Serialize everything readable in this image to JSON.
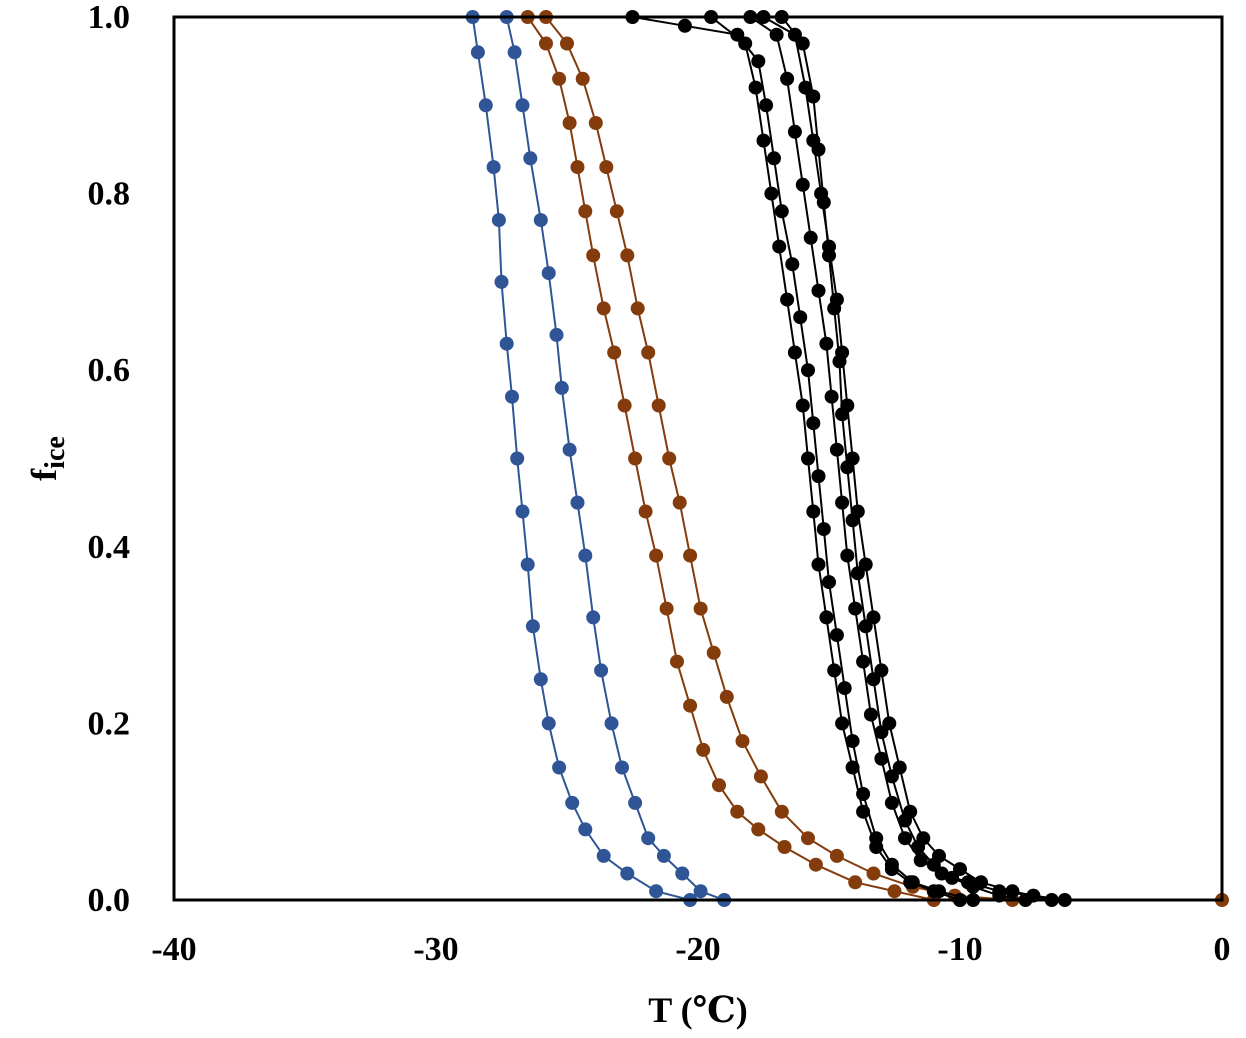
{
  "chart_data": {
    "type": "scatter",
    "title": "",
    "xlabel": "T (℃)",
    "ylabel": {
      "main": "f",
      "subscript": "ice"
    },
    "xlim": [
      -40,
      0
    ],
    "ylim": [
      0,
      1
    ],
    "xticks": [
      -40,
      -30,
      -20,
      -10,
      0
    ],
    "yticks": [
      0.0,
      0.2,
      0.4,
      0.6,
      0.8,
      1.0
    ],
    "xtick_labels": [
      "-40",
      "-30",
      "-20",
      "-10",
      "0"
    ],
    "ytick_labels": [
      "0.0",
      "0.2",
      "0.4",
      "0.6",
      "0.8",
      "1.0"
    ],
    "grid": false,
    "legend": "none",
    "series": [
      {
        "color": "#2F5597",
        "points": [
          [
            -28.6,
            1.0
          ],
          [
            -28.4,
            0.96
          ],
          [
            -28.1,
            0.9
          ],
          [
            -27.8,
            0.83
          ],
          [
            -27.6,
            0.77
          ],
          [
            -27.5,
            0.7
          ],
          [
            -27.3,
            0.63
          ],
          [
            -27.1,
            0.57
          ],
          [
            -26.9,
            0.5
          ],
          [
            -26.7,
            0.44
          ],
          [
            -26.5,
            0.38
          ],
          [
            -26.3,
            0.31
          ],
          [
            -26.0,
            0.25
          ],
          [
            -25.7,
            0.2
          ],
          [
            -25.3,
            0.15
          ],
          [
            -24.8,
            0.11
          ],
          [
            -24.3,
            0.08
          ],
          [
            -23.6,
            0.05
          ],
          [
            -22.7,
            0.03
          ],
          [
            -21.6,
            0.01
          ],
          [
            -20.3,
            0.0
          ]
        ]
      },
      {
        "color": "#2F5597",
        "points": [
          [
            -27.3,
            1.0
          ],
          [
            -27.0,
            0.96
          ],
          [
            -26.7,
            0.9
          ],
          [
            -26.4,
            0.84
          ],
          [
            -26.0,
            0.77
          ],
          [
            -25.7,
            0.71
          ],
          [
            -25.4,
            0.64
          ],
          [
            -25.2,
            0.58
          ],
          [
            -24.9,
            0.51
          ],
          [
            -24.6,
            0.45
          ],
          [
            -24.3,
            0.39
          ],
          [
            -24.0,
            0.32
          ],
          [
            -23.7,
            0.26
          ],
          [
            -23.3,
            0.2
          ],
          [
            -22.9,
            0.15
          ],
          [
            -22.4,
            0.11
          ],
          [
            -21.9,
            0.07
          ],
          [
            -21.3,
            0.05
          ],
          [
            -20.6,
            0.03
          ],
          [
            -19.9,
            0.01
          ],
          [
            -19.0,
            0.0
          ],
          [
            -10.0,
            0.0
          ]
        ]
      },
      {
        "color": "#843C0C",
        "points": [
          [
            -26.5,
            1.0
          ],
          [
            -25.8,
            0.97
          ],
          [
            -25.3,
            0.93
          ],
          [
            -24.9,
            0.88
          ],
          [
            -24.6,
            0.83
          ],
          [
            -24.3,
            0.78
          ],
          [
            -24.0,
            0.73
          ],
          [
            -23.6,
            0.67
          ],
          [
            -23.2,
            0.62
          ],
          [
            -22.8,
            0.56
          ],
          [
            -22.4,
            0.5
          ],
          [
            -22.0,
            0.44
          ],
          [
            -21.6,
            0.39
          ],
          [
            -21.2,
            0.33
          ],
          [
            -20.8,
            0.27
          ],
          [
            -20.3,
            0.22
          ],
          [
            -19.8,
            0.17
          ],
          [
            -19.2,
            0.13
          ],
          [
            -18.5,
            0.1
          ],
          [
            -17.7,
            0.08
          ],
          [
            -16.7,
            0.06
          ],
          [
            -15.5,
            0.04
          ],
          [
            -14.0,
            0.02
          ],
          [
            -12.5,
            0.01
          ],
          [
            -11.0,
            0.0
          ]
        ]
      },
      {
        "color": "#843C0C",
        "points": [
          [
            -25.8,
            1.0
          ],
          [
            -25.0,
            0.97
          ],
          [
            -24.4,
            0.93
          ],
          [
            -23.9,
            0.88
          ],
          [
            -23.5,
            0.83
          ],
          [
            -23.1,
            0.78
          ],
          [
            -22.7,
            0.73
          ],
          [
            -22.3,
            0.67
          ],
          [
            -21.9,
            0.62
          ],
          [
            -21.5,
            0.56
          ],
          [
            -21.1,
            0.5
          ],
          [
            -20.7,
            0.45
          ],
          [
            -20.3,
            0.39
          ],
          [
            -19.9,
            0.33
          ],
          [
            -19.4,
            0.28
          ],
          [
            -18.9,
            0.23
          ],
          [
            -18.3,
            0.18
          ],
          [
            -17.6,
            0.14
          ],
          [
            -16.8,
            0.1
          ],
          [
            -15.8,
            0.07
          ],
          [
            -14.7,
            0.05
          ],
          [
            -13.3,
            0.03
          ],
          [
            -11.8,
            0.015
          ],
          [
            -10.2,
            0.005
          ],
          [
            -8.0,
            0.0
          ],
          [
            0.0,
            0.0
          ]
        ]
      },
      {
        "color": "#000000",
        "points": [
          [
            -22.5,
            1.0
          ],
          [
            -20.5,
            0.99
          ],
          [
            -18.5,
            0.98
          ],
          [
            -17.7,
            0.95
          ],
          [
            -17.4,
            0.9
          ],
          [
            -17.1,
            0.84
          ],
          [
            -16.8,
            0.78
          ],
          [
            -16.4,
            0.72
          ],
          [
            -16.1,
            0.66
          ],
          [
            -15.8,
            0.6
          ],
          [
            -15.6,
            0.54
          ],
          [
            -15.4,
            0.48
          ],
          [
            -15.2,
            0.42
          ],
          [
            -15.0,
            0.36
          ],
          [
            -14.7,
            0.3
          ],
          [
            -14.4,
            0.24
          ],
          [
            -14.1,
            0.18
          ],
          [
            -13.7,
            0.12
          ],
          [
            -13.2,
            0.07
          ],
          [
            -12.6,
            0.04
          ],
          [
            -11.8,
            0.02
          ],
          [
            -10.8,
            0.01
          ],
          [
            -9.5,
            0.0
          ]
        ]
      },
      {
        "color": "#000000",
        "points": [
          [
            -18.0,
            1.0
          ],
          [
            -17.0,
            0.98
          ],
          [
            -16.6,
            0.93
          ],
          [
            -16.3,
            0.87
          ],
          [
            -16.0,
            0.81
          ],
          [
            -15.7,
            0.75
          ],
          [
            -15.4,
            0.69
          ],
          [
            -15.1,
            0.63
          ],
          [
            -14.9,
            0.57
          ],
          [
            -14.7,
            0.51
          ],
          [
            -14.5,
            0.45
          ],
          [
            -14.3,
            0.39
          ],
          [
            -14.0,
            0.33
          ],
          [
            -13.7,
            0.27
          ],
          [
            -13.4,
            0.21
          ],
          [
            -13.0,
            0.16
          ],
          [
            -12.6,
            0.11
          ],
          [
            -12.1,
            0.07
          ],
          [
            -11.5,
            0.045
          ],
          [
            -10.7,
            0.03
          ],
          [
            -9.7,
            0.02
          ],
          [
            -8.5,
            0.01
          ],
          [
            -7.2,
            0.005
          ],
          [
            -6.0,
            0.0
          ]
        ]
      },
      {
        "color": "#000000",
        "points": [
          [
            -17.5,
            1.0
          ],
          [
            -16.3,
            0.98
          ],
          [
            -15.9,
            0.92
          ],
          [
            -15.6,
            0.86
          ],
          [
            -15.3,
            0.8
          ],
          [
            -15.0,
            0.74
          ],
          [
            -14.7,
            0.68
          ],
          [
            -14.5,
            0.62
          ],
          [
            -14.3,
            0.56
          ],
          [
            -14.1,
            0.5
          ],
          [
            -13.9,
            0.44
          ],
          [
            -13.6,
            0.38
          ],
          [
            -13.3,
            0.32
          ],
          [
            -13.0,
            0.26
          ],
          [
            -12.7,
            0.2
          ],
          [
            -12.3,
            0.15
          ],
          [
            -11.9,
            0.1
          ],
          [
            -11.4,
            0.07
          ],
          [
            -10.8,
            0.05
          ],
          [
            -10.0,
            0.035
          ],
          [
            -9.2,
            0.02
          ],
          [
            -8.0,
            0.01
          ],
          [
            -6.5,
            0.0
          ]
        ]
      },
      {
        "color": "#000000",
        "points": [
          [
            -19.5,
            1.0
          ],
          [
            -18.2,
            0.97
          ],
          [
            -17.8,
            0.92
          ],
          [
            -17.5,
            0.86
          ],
          [
            -17.2,
            0.8
          ],
          [
            -16.9,
            0.74
          ],
          [
            -16.6,
            0.68
          ],
          [
            -16.3,
            0.62
          ],
          [
            -16.0,
            0.56
          ],
          [
            -15.8,
            0.5
          ],
          [
            -15.6,
            0.44
          ],
          [
            -15.4,
            0.38
          ],
          [
            -15.1,
            0.32
          ],
          [
            -14.8,
            0.26
          ],
          [
            -14.5,
            0.2
          ],
          [
            -14.1,
            0.15
          ],
          [
            -13.7,
            0.1
          ],
          [
            -13.2,
            0.06
          ],
          [
            -12.6,
            0.035
          ],
          [
            -11.9,
            0.02
          ],
          [
            -11.0,
            0.01
          ],
          [
            -10.0,
            0.0
          ]
        ]
      },
      {
        "color": "#000000",
        "points": [
          [
            -16.8,
            1.0
          ],
          [
            -16.0,
            0.97
          ],
          [
            -15.6,
            0.91
          ],
          [
            -15.4,
            0.85
          ],
          [
            -15.2,
            0.79
          ],
          [
            -15.0,
            0.73
          ],
          [
            -14.8,
            0.67
          ],
          [
            -14.6,
            0.61
          ],
          [
            -14.5,
            0.55
          ],
          [
            -14.3,
            0.49
          ],
          [
            -14.1,
            0.43
          ],
          [
            -13.9,
            0.37
          ],
          [
            -13.6,
            0.31
          ],
          [
            -13.3,
            0.25
          ],
          [
            -13.0,
            0.19
          ],
          [
            -12.6,
            0.14
          ],
          [
            -12.1,
            0.09
          ],
          [
            -11.6,
            0.06
          ],
          [
            -11.0,
            0.04
          ],
          [
            -10.3,
            0.025
          ],
          [
            -9.5,
            0.015
          ],
          [
            -8.5,
            0.005
          ],
          [
            -7.5,
            0.0
          ]
        ]
      }
    ]
  }
}
